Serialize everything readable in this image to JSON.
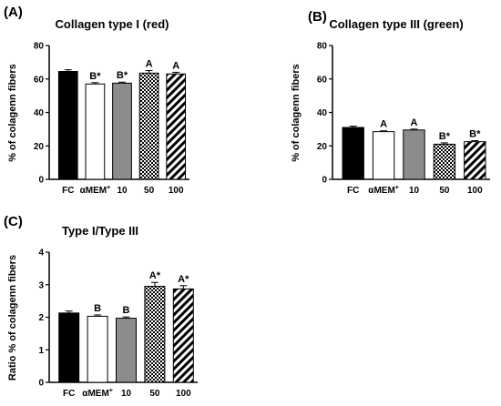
{
  "chart_data": [
    {
      "type": "bar",
      "panel_label": "(A)",
      "title": "Collagen type I (red)",
      "ylabel": "% of colagenn fibers",
      "ylim": [
        0,
        80
      ],
      "yticks": [
        "0",
        "20",
        "40",
        "60",
        "80"
      ],
      "categories": [
        "FC",
        "αMEM",
        "10",
        "50",
        "100"
      ],
      "category_superscripts": [
        "",
        "+",
        "",
        "",
        ""
      ],
      "values": [
        64.5,
        57,
        57.5,
        63.5,
        63
      ],
      "errors": [
        1.0,
        0.8,
        0.6,
        1.5,
        1.0
      ],
      "annotations": [
        "",
        "B*",
        "B*",
        "A",
        "A"
      ],
      "fills": [
        "black",
        "white",
        "gray",
        "checker",
        "diagonal"
      ]
    },
    {
      "type": "bar",
      "panel_label": "(B)",
      "title": "Collagen type III (green)",
      "ylabel": "% of colagenn fibers",
      "ylim": [
        0,
        80
      ],
      "yticks": [
        "0",
        "20",
        "40",
        "60",
        "80"
      ],
      "categories": [
        "FC",
        "αMEM",
        "10",
        "50",
        "100"
      ],
      "category_superscripts": [
        "",
        "+",
        "",
        "",
        ""
      ],
      "values": [
        31,
        28.5,
        29.5,
        21,
        22.5
      ],
      "errors": [
        0.8,
        0.5,
        0.5,
        0.8,
        0.6
      ],
      "annotations": [
        "",
        "A",
        "A",
        "B*",
        "B*"
      ],
      "fills": [
        "black",
        "white",
        "gray",
        "checker",
        "diagonal"
      ]
    },
    {
      "type": "bar",
      "panel_label": "(C)",
      "title": "Type I/Type III",
      "ylabel": "Ratio % of colagenn fibers",
      "ylim": [
        0,
        4
      ],
      "yticks": [
        "0",
        "1",
        "2",
        "3",
        "4"
      ],
      "categories": [
        "FC",
        "αMEM",
        "10",
        "50",
        "100"
      ],
      "category_superscripts": [
        "",
        "+",
        "",
        "",
        ""
      ],
      "values": [
        2.13,
        2.03,
        1.97,
        2.95,
        2.87
      ],
      "errors": [
        0.06,
        0.04,
        0.04,
        0.12,
        0.1
      ],
      "annotations": [
        "",
        "B",
        "B",
        "A*",
        "A*"
      ],
      "fills": [
        "black",
        "white",
        "gray",
        "checker",
        "diagonal"
      ]
    }
  ],
  "colors": {
    "bar_outline": "#000000",
    "gray_fill": "#8c8c8c",
    "axis": "#000000"
  }
}
